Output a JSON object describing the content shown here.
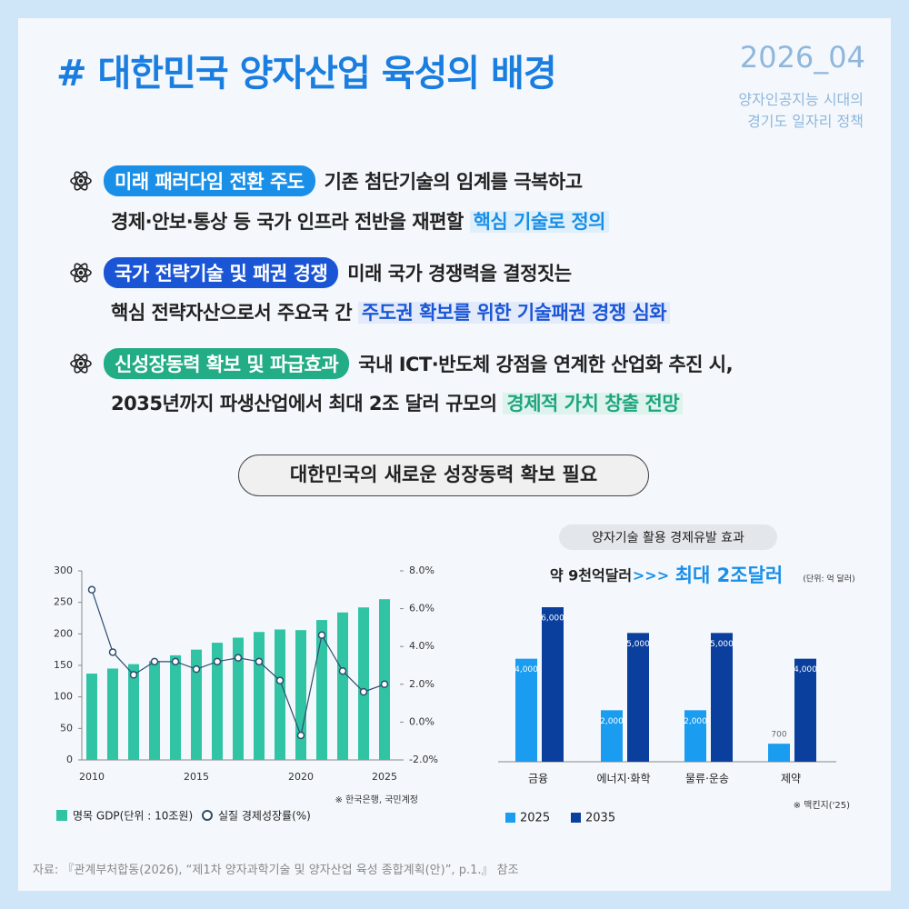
{
  "header": {
    "title": "# 대한민국 양자산업 육성의 배경",
    "issue": "2026_04",
    "subtitle_lines": [
      "양자인공지능 시대의",
      "경기도 일자리 정책"
    ]
  },
  "bullets": [
    {
      "tag": "미래 패러다임 전환 주도",
      "line1": "기존 첨단기술의 임계를 극복하고",
      "line2": "경제·안보·통상 등 국가 인프라 전반을 재편할",
      "highlight": "핵심 기술로 정의"
    },
    {
      "tag": "국가 전략기술 및 패권 경쟁",
      "line1": "미래 국가 경쟁력을 결정짓는",
      "line2": "핵심 전략자산으로서 주요국 간",
      "highlight": "주도권 확보를 위한 기술패권 경쟁 심화"
    },
    {
      "tag": "신성장동력 확보 및 파급효과",
      "line1": "국내 ICT·반도체 강점을 연계한 산업화 추진 시,",
      "line2": "2035년까지 파생산업에서 최대 2조 달러 규모의",
      "highlight": "경제적 가치 창출 전망"
    }
  ],
  "section_title": "대한민국의 새로운 성장동력 확보 필요",
  "chart_data": [
    {
      "type": "bar_line",
      "categories": [
        "2010",
        null,
        null,
        null,
        null,
        "2015",
        null,
        null,
        null,
        null,
        "2020",
        null,
        null,
        null,
        "2025"
      ],
      "series": [
        {
          "name": "명목 GDP(단위 : 10조원)",
          "color": "#30c4a5",
          "type": "bar",
          "values": [
            137,
            145,
            152,
            157,
            166,
            175,
            186,
            194,
            203,
            207,
            206,
            222,
            234,
            242,
            255
          ]
        },
        {
          "name": "실질 경제성장률(%)",
          "color": "#2f4c6e",
          "type": "line",
          "axis": "y2",
          "values": [
            7.0,
            3.7,
            2.5,
            3.2,
            3.2,
            2.8,
            3.2,
            3.4,
            3.2,
            2.2,
            -0.7,
            4.6,
            2.7,
            1.6,
            2.0
          ]
        }
      ],
      "ylim": [
        0,
        300
      ],
      "yticks": [
        0,
        50,
        100,
        150,
        200,
        250,
        300
      ],
      "y2lim": [
        -2,
        8
      ],
      "y2ticks": [
        {
          "value": -2,
          "label": "-2.0%"
        },
        {
          "value": 0,
          "label": "0.0%"
        },
        {
          "value": 2,
          "label": "2.0%"
        },
        {
          "value": 4,
          "label": "4.0%"
        },
        {
          "value": 6,
          "label": "6.0%"
        },
        {
          "value": 8,
          "label": "8.0%"
        }
      ],
      "source": "※ 한국은행, 국민계정"
    },
    {
      "type": "grouped_bar",
      "title": "양자기술 활용 경제유발 효과",
      "headline_from": "약 9천억달러",
      "headline_arrow": ">>>",
      "headline_to": "최대 2조달러",
      "unit": "(단위: 억 달러)",
      "categories": [
        "금융",
        "에너지·화학",
        "물류·운송",
        "제약"
      ],
      "series": [
        {
          "name": "2025",
          "color": "#1a9cf0",
          "values": [
            4000,
            2000,
            2000,
            700
          ],
          "value_labels": [
            "4,000",
            "2,000",
            "2,000",
            "700"
          ]
        },
        {
          "name": "2035",
          "color": "#0a3f9e",
          "values": [
            6000,
            5000,
            5000,
            4000
          ],
          "value_labels": [
            "6,000",
            "5,000",
            "5,000",
            "4,000"
          ]
        }
      ],
      "ylim": [
        0,
        6000
      ],
      "source": "※ 맥킨지('25)"
    }
  ],
  "footer": "자료: 『관계부처합동(2026), “제1차 양자과학기술 및 양자산업 육성 종합계획(안)”, p.1.』 참조"
}
